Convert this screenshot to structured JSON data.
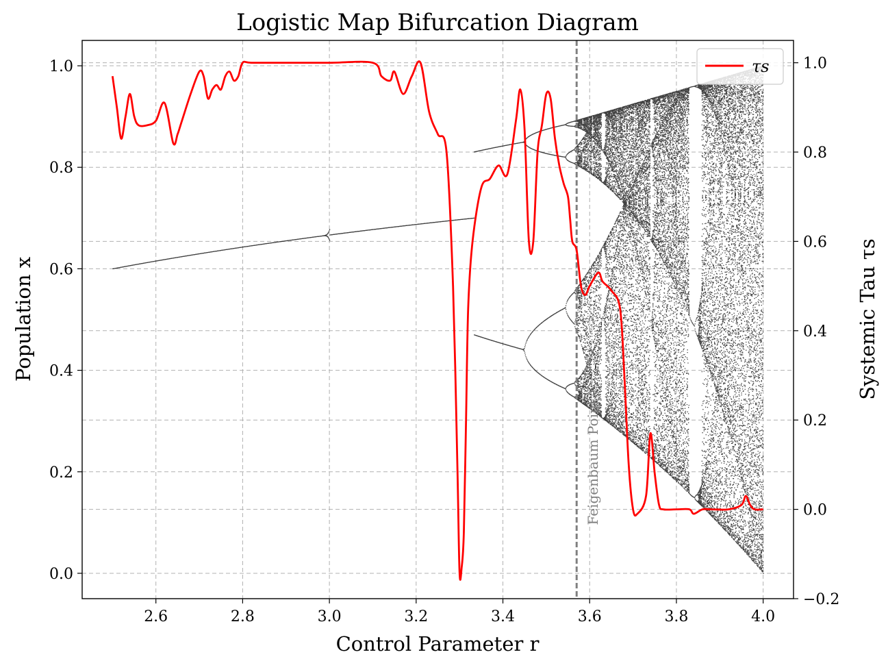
{
  "chart_data": {
    "type": "scatter",
    "title": "Logistic Map Bifurcation Diagram",
    "xlabel": "Control Parameter r",
    "ylabel": "Population x",
    "y2label": "Systemic Tau τs",
    "xlim": [
      2.43,
      4.07
    ],
    "ylim": [
      -0.05,
      1.05
    ],
    "y2lim": [
      -0.2,
      1.05
    ],
    "xticks": [
      "2.6",
      "2.8",
      "3.0",
      "3.2",
      "3.4",
      "3.6",
      "3.8",
      "4.0"
    ],
    "yticks": [
      "0.0",
      "0.2",
      "0.4",
      "0.6",
      "0.8",
      "1.0"
    ],
    "y2ticks": [
      "−0.2",
      "0.0",
      "0.2",
      "0.4",
      "0.6",
      "0.8",
      "1.0"
    ],
    "grid": true,
    "legend": {
      "position": "top-right",
      "entries": [
        "τs"
      ]
    },
    "annotation": {
      "text": "Feigenbaum Point",
      "x": 3.57
    },
    "bifurcation": {
      "r_range": [
        2.5,
        4.0
      ],
      "start_r": 2.5,
      "start_x": 0.6,
      "period_doubling": [
        3.0,
        3.449,
        3.544,
        3.5644
      ],
      "shown_gap": [
        3.0,
        3.333
      ],
      "chaos_onset": 3.5699,
      "color": "#000000"
    },
    "series": [
      {
        "name": "τs",
        "axis": "right",
        "color": "#ff0000",
        "x": [
          2.5,
          2.51,
          2.52,
          2.53,
          2.54,
          2.55,
          2.56,
          2.58,
          2.6,
          2.62,
          2.64,
          2.65,
          2.66,
          2.68,
          2.7,
          2.71,
          2.72,
          2.73,
          2.74,
          2.75,
          2.76,
          2.77,
          2.78,
          2.79,
          2.8,
          2.82,
          2.9,
          3.0,
          3.1,
          3.12,
          3.14,
          3.15,
          3.17,
          3.19,
          3.21,
          3.23,
          3.25,
          3.27,
          3.285,
          3.295,
          3.3,
          3.305,
          3.31,
          3.315,
          3.32,
          3.33,
          3.35,
          3.37,
          3.39,
          3.41,
          3.43,
          3.44,
          3.45,
          3.46,
          3.47,
          3.48,
          3.49,
          3.5,
          3.51,
          3.52,
          3.53,
          3.54,
          3.55,
          3.555,
          3.56,
          3.57,
          3.58,
          3.59,
          3.6,
          3.62,
          3.63,
          3.65,
          3.67,
          3.68,
          3.69,
          3.7,
          3.71,
          3.73,
          3.74,
          3.75,
          3.76,
          3.77,
          3.8,
          3.83,
          3.84,
          3.86,
          3.88,
          3.92,
          3.95,
          3.96,
          3.97,
          3.98,
          4.0
        ],
        "y": [
          0.97,
          0.9,
          0.83,
          0.88,
          0.93,
          0.88,
          0.86,
          0.86,
          0.87,
          0.91,
          0.82,
          0.84,
          0.87,
          0.93,
          0.98,
          0.97,
          0.92,
          0.94,
          0.95,
          0.94,
          0.97,
          0.98,
          0.96,
          0.97,
          1.0,
          1.0,
          1.0,
          1.0,
          1.0,
          0.97,
          0.96,
          0.98,
          0.93,
          0.97,
          1.0,
          0.89,
          0.84,
          0.8,
          0.5,
          0.1,
          -0.14,
          -0.13,
          -0.05,
          0.2,
          0.45,
          0.6,
          0.72,
          0.74,
          0.77,
          0.75,
          0.87,
          0.94,
          0.85,
          0.6,
          0.6,
          0.8,
          0.86,
          0.93,
          0.92,
          0.83,
          0.77,
          0.73,
          0.7,
          0.65,
          0.6,
          0.58,
          0.5,
          0.48,
          0.5,
          0.53,
          0.51,
          0.49,
          0.45,
          0.3,
          0.1,
          0.0,
          -0.01,
          0.03,
          0.17,
          0.08,
          0.01,
          0.0,
          0.0,
          0.0,
          -0.01,
          0.0,
          0.0,
          0.0,
          0.01,
          0.03,
          0.01,
          0.0,
          0.0
        ]
      }
    ]
  }
}
